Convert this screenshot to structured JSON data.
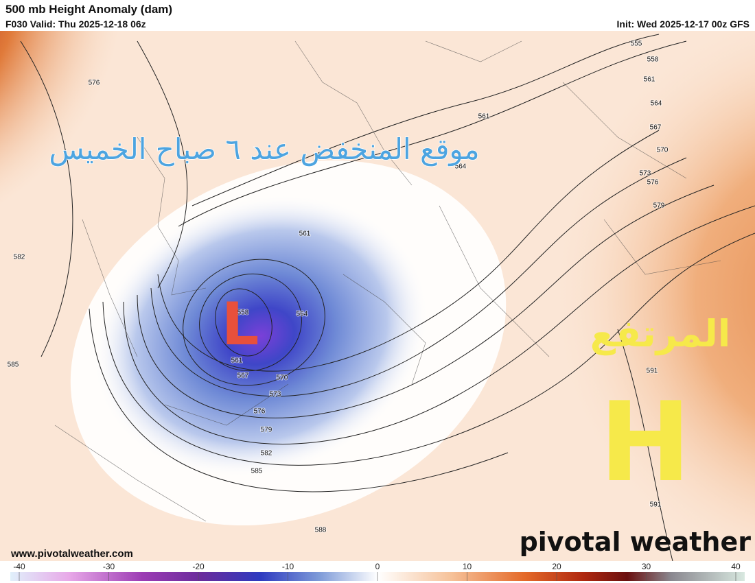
{
  "header": {
    "title": "500 mb Height Anomaly (dam)",
    "valid": "F030 Valid: Thu 2025-12-18 06z",
    "init": "Init: Wed 2025-12-17 00z GFS"
  },
  "map": {
    "annotations": {
      "low_text": "موقع المنخفض عند ٦ صباح الخميس",
      "high_text": "المرتفع",
      "low_letter": "L",
      "high_letter": "H"
    },
    "contour_labels": [
      "555",
      "558",
      "561",
      "564",
      "567",
      "570",
      "573",
      "576",
      "579",
      "591",
      "591",
      "588",
      "585",
      "582",
      "579",
      "576",
      "573",
      "570",
      "567",
      "561",
      "558",
      "564",
      "561",
      "561",
      "564",
      "576",
      "582",
      "585"
    ]
  },
  "footer": {
    "url": "www.pivotalweather.com",
    "logo": "pivotal weather"
  },
  "colorbar": {
    "ticks": [
      -40,
      -30,
      -20,
      -10,
      0,
      10,
      20,
      30,
      40
    ]
  }
}
